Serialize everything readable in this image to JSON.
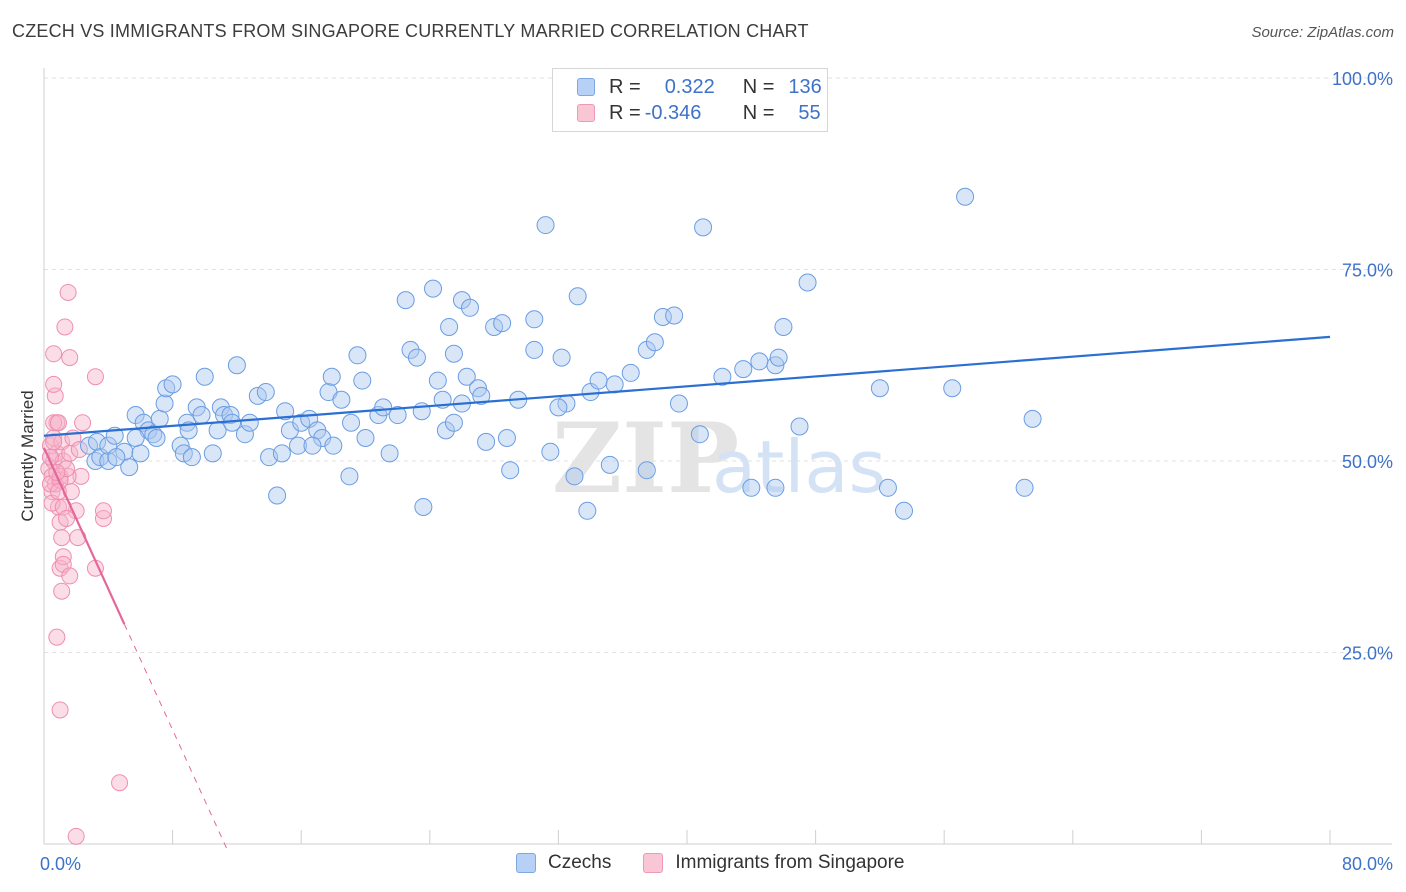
{
  "header": {
    "title": "CZECH VS IMMIGRANTS FROM SINGAPORE CURRENTLY MARRIED CORRELATION CHART",
    "source": "Source: ZipAtlas.com"
  },
  "legend": {
    "rows": [
      {
        "r_label": "R =",
        "r_value": "0.322",
        "n_label": "N =",
        "n_value": "136"
      },
      {
        "r_label": "R =",
        "r_value": "-0.346",
        "n_label": "N =",
        "n_value": "55"
      }
    ],
    "bottom": [
      "Czechs",
      "Immigrants from Singapore"
    ]
  },
  "watermark": {
    "part1": "ZIP",
    "part2": "atlas"
  },
  "chart_data": {
    "type": "scatter",
    "title": "CZECH VS IMMIGRANTS FROM SINGAPORE CURRENTLY MARRIED CORRELATION CHART",
    "xlabel": "",
    "ylabel": "Currently Married",
    "xlim": [
      0,
      80
    ],
    "ylim": [
      0,
      100
    ],
    "x_tick_labels": [
      {
        "value": 0,
        "label": "0.0%"
      },
      {
        "value": 80,
        "label": "80.0%"
      }
    ],
    "y_tick_labels": [
      {
        "value": 100,
        "label": "100.0%"
      },
      {
        "value": 75,
        "label": "75.0%"
      },
      {
        "value": 50,
        "label": "50.0%"
      },
      {
        "value": 25,
        "label": "25.0%"
      }
    ],
    "x_minor_ticks": [
      8,
      16,
      24,
      32,
      40,
      48,
      56,
      64,
      72,
      80
    ],
    "grid": true,
    "colors": {
      "czechs": "#6a9de3",
      "singapore": "#ef8eb0",
      "czechs_line": "#2a6fd2",
      "singapore_line": "#e4679a",
      "tick": "#3e72c8"
    },
    "series": [
      {
        "name": "Czechs",
        "r": 0.322,
        "n": 136,
        "trend": {
          "x0": 0,
          "y0": 53.3,
          "x1": 80,
          "y1": 66.2
        },
        "points": [
          [
            2.8,
            52
          ],
          [
            3.2,
            50
          ],
          [
            3.3,
            52.5
          ],
          [
            3.5,
            50.5
          ],
          [
            4,
            50
          ],
          [
            4,
            52
          ],
          [
            4.4,
            53.3
          ],
          [
            5,
            51.2
          ],
          [
            5.3,
            49.2
          ],
          [
            5.7,
            56
          ],
          [
            6,
            51
          ],
          [
            6.2,
            55
          ],
          [
            6.5,
            54
          ],
          [
            6.8,
            53.5
          ],
          [
            7.2,
            55.5
          ],
          [
            7.5,
            57.5
          ],
          [
            7.6,
            59.5
          ],
          [
            8,
            60
          ],
          [
            8.5,
            52
          ],
          [
            8.7,
            51
          ],
          [
            8.9,
            55
          ],
          [
            9,
            54
          ],
          [
            9.5,
            57
          ],
          [
            9.8,
            56
          ],
          [
            10,
            61
          ],
          [
            10.5,
            51
          ],
          [
            10.8,
            54
          ],
          [
            11,
            57
          ],
          [
            11.2,
            56
          ],
          [
            11.6,
            56
          ],
          [
            12,
            62.5
          ],
          [
            12.5,
            53.5
          ],
          [
            12.8,
            55
          ],
          [
            13.3,
            58.5
          ],
          [
            13.8,
            59
          ],
          [
            14,
            50.5
          ],
          [
            14.5,
            45.5
          ],
          [
            14.8,
            51
          ],
          [
            15,
            56.5
          ],
          [
            15.3,
            54
          ],
          [
            15.8,
            52
          ],
          [
            16,
            55
          ],
          [
            16.5,
            55.5
          ],
          [
            17,
            54
          ],
          [
            17.3,
            53
          ],
          [
            17.7,
            59
          ],
          [
            17.9,
            61
          ],
          [
            18,
            52
          ],
          [
            18.5,
            58
          ],
          [
            19,
            48
          ],
          [
            19.1,
            55
          ],
          [
            19.5,
            63.8
          ],
          [
            19.8,
            60.5
          ],
          [
            20,
            53
          ],
          [
            20.8,
            56
          ],
          [
            21.1,
            57
          ],
          [
            21.5,
            51
          ],
          [
            22,
            56
          ],
          [
            22.5,
            71
          ],
          [
            22.8,
            64.5
          ],
          [
            23.2,
            63.5
          ],
          [
            23.5,
            56.5
          ],
          [
            23.6,
            44
          ],
          [
            24.2,
            72.5
          ],
          [
            24.5,
            60.5
          ],
          [
            24.8,
            58
          ],
          [
            25,
            54
          ],
          [
            25.2,
            67.5
          ],
          [
            25.5,
            64
          ],
          [
            26,
            57.5
          ],
          [
            26,
            71
          ],
          [
            26.3,
            61
          ],
          [
            26.5,
            70
          ],
          [
            27,
            59.5
          ],
          [
            27.2,
            58.5
          ],
          [
            27.5,
            52.5
          ],
          [
            28,
            67.5
          ],
          [
            28.5,
            68
          ],
          [
            28.8,
            53
          ],
          [
            29,
            48.8
          ],
          [
            29.5,
            58
          ],
          [
            30.5,
            68.5
          ],
          [
            30.5,
            64.5
          ],
          [
            31.2,
            80.8
          ],
          [
            31.5,
            51.2
          ],
          [
            32.2,
            63.5
          ],
          [
            32.5,
            57.5
          ],
          [
            33,
            48
          ],
          [
            33.2,
            71.5
          ],
          [
            33.8,
            43.5
          ],
          [
            34,
            59
          ],
          [
            35.2,
            49.5
          ],
          [
            35.5,
            60
          ],
          [
            36.5,
            61.5
          ],
          [
            37.5,
            64.5
          ],
          [
            38,
            65.5
          ],
          [
            37.5,
            48.8
          ],
          [
            38.5,
            68.8
          ],
          [
            39.5,
            57.5
          ],
          [
            39.2,
            69
          ],
          [
            40.8,
            53.5
          ],
          [
            41,
            80.5
          ],
          [
            42.2,
            61
          ],
          [
            43.5,
            62
          ],
          [
            44,
            46.5
          ],
          [
            45.5,
            62.5
          ],
          [
            45.5,
            46.5
          ],
          [
            45.7,
            63.5
          ],
          [
            46,
            67.5
          ],
          [
            47,
            54.5
          ],
          [
            47.5,
            73.3
          ],
          [
            52.5,
            46.5
          ],
          [
            52,
            59.5
          ],
          [
            53.5,
            43.5
          ],
          [
            56.5,
            59.5
          ],
          [
            57.3,
            84.5
          ],
          [
            61,
            46.5
          ],
          [
            61.5,
            55.5
          ],
          [
            4.5,
            50.5
          ],
          [
            5.7,
            53
          ],
          [
            7,
            53
          ],
          [
            9.2,
            50.5
          ],
          [
            11.7,
            55
          ],
          [
            16.7,
            52
          ],
          [
            25.5,
            55
          ],
          [
            32,
            57
          ],
          [
            34.5,
            60.5
          ],
          [
            44.5,
            63
          ]
        ]
      },
      {
        "name": "Immigrants from Singapore",
        "r": -0.346,
        "n": 55,
        "trend": {
          "x0": 0,
          "y0": 51.7,
          "x1": 5,
          "y1": 28.7,
          "dash_to_x": 11.5
        },
        "points": [
          [
            0.3,
            49
          ],
          [
            0.4,
            52
          ],
          [
            0.5,
            48
          ],
          [
            0.5,
            46
          ],
          [
            0.6,
            50
          ],
          [
            0.6,
            53
          ],
          [
            0.7,
            47
          ],
          [
            0.8,
            51
          ],
          [
            0.8,
            55
          ],
          [
            0.9,
            44
          ],
          [
            1,
            42
          ],
          [
            1,
            48
          ],
          [
            1.1,
            52.5
          ],
          [
            1.2,
            50
          ],
          [
            0.6,
            55
          ],
          [
            0.7,
            58.5
          ],
          [
            0.6,
            60
          ],
          [
            0.6,
            64
          ],
          [
            0.9,
            55
          ],
          [
            1,
            36
          ],
          [
            1.2,
            37.5
          ],
          [
            1.1,
            40
          ],
          [
            1.3,
            67.5
          ],
          [
            1.5,
            72
          ],
          [
            1.6,
            63.5
          ],
          [
            1.1,
            33
          ],
          [
            1.2,
            36.5
          ],
          [
            0.8,
            27
          ],
          [
            1,
            17.5
          ],
          [
            2,
            43.5
          ],
          [
            2.1,
            40
          ],
          [
            2.4,
            55
          ],
          [
            2.3,
            48
          ],
          [
            1.5,
            48
          ],
          [
            3.2,
            61
          ],
          [
            3.2,
            36
          ],
          [
            3.7,
            42.5
          ],
          [
            3.7,
            43.5
          ],
          [
            1.6,
            35
          ],
          [
            4.7,
            8
          ],
          [
            2,
            1
          ],
          [
            0.4,
            47
          ],
          [
            0.5,
            44.5
          ],
          [
            1,
            47.5
          ],
          [
            1.4,
            49
          ],
          [
            1.6,
            51
          ],
          [
            0.8,
            48.5
          ],
          [
            0.4,
            50.5
          ],
          [
            0.6,
            52.5
          ],
          [
            1.2,
            44
          ],
          [
            1.8,
            53
          ],
          [
            2.2,
            51.5
          ],
          [
            0.9,
            46
          ],
          [
            1.4,
            42.5
          ],
          [
            1.7,
            46
          ]
        ]
      }
    ]
  }
}
